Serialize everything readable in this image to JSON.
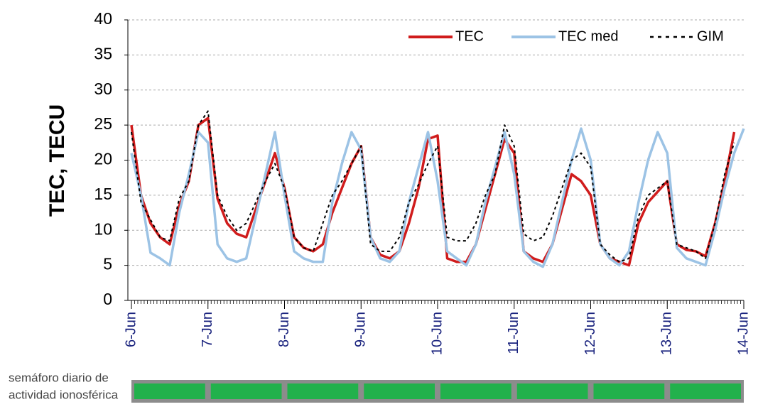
{
  "chart_data": {
    "type": "line",
    "ylabel": "TEC, TECU",
    "x": [
      0,
      0.125,
      0.25,
      0.375,
      0.5,
      0.625,
      0.75,
      0.875,
      1,
      1.125,
      1.25,
      1.375,
      1.5,
      1.625,
      1.75,
      1.875,
      2,
      2.125,
      2.25,
      2.375,
      2.5,
      2.625,
      2.75,
      2.875,
      3,
      3.125,
      3.25,
      3.375,
      3.5,
      3.625,
      3.75,
      3.875,
      4,
      4.125,
      4.25,
      4.375,
      4.5,
      4.625,
      4.75,
      4.875,
      5,
      5.125,
      5.25,
      5.375,
      5.5,
      5.625,
      5.75,
      5.875,
      6,
      6.125,
      6.25,
      6.375,
      6.5,
      6.625,
      6.75,
      6.875,
      7,
      7.125,
      7.25,
      7.375,
      7.5,
      7.625,
      7.75,
      7.875,
      8
    ],
    "series": [
      {
        "name": "TEC",
        "color": "#d01c1c",
        "dash": "solid",
        "values": [
          25,
          15,
          11,
          9,
          8,
          13.5,
          17,
          25,
          26,
          14.5,
          11,
          9.5,
          9,
          13,
          17,
          21,
          16,
          9,
          7.5,
          7,
          8,
          12.5,
          16,
          19.5,
          22,
          9,
          6.5,
          6,
          7,
          11,
          16,
          23,
          23.5,
          6,
          5.5,
          5.5,
          8,
          13,
          18,
          23,
          21,
          7,
          6,
          5.5,
          8,
          13,
          18,
          17,
          15,
          8,
          6,
          5.5,
          5,
          11,
          14,
          15.5,
          17,
          8,
          7.2,
          7,
          6.3,
          11,
          17,
          24,
          null
        ]
      },
      {
        "name": "TEC med",
        "color": "#9cc3e5",
        "dash": "solid",
        "values": [
          21,
          15,
          6.8,
          6,
          5,
          12.5,
          18,
          24,
          22.5,
          8,
          6,
          5.5,
          6,
          12,
          18,
          24,
          15,
          7,
          6,
          5.5,
          5.5,
          14,
          19.5,
          24,
          21.5,
          9,
          6,
          5.5,
          7,
          14,
          19,
          24,
          17,
          7,
          6,
          5,
          8,
          14,
          19,
          24,
          18,
          7,
          5.5,
          4.8,
          8,
          14,
          20,
          24.5,
          20,
          8,
          6,
          5,
          7,
          14,
          20,
          24,
          21,
          7.5,
          6,
          5.5,
          5,
          10,
          16,
          21,
          24.5
        ]
      },
      {
        "name": "GIM",
        "color": "#000000",
        "dash": "dotted",
        "values": [
          24,
          14,
          11.5,
          9,
          8.5,
          14.5,
          17,
          25,
          27,
          15,
          12,
          10,
          11,
          14,
          17,
          19.5,
          16,
          9,
          7.5,
          7,
          11,
          15,
          17,
          19.5,
          22,
          8,
          7,
          7,
          9,
          14,
          16.5,
          19.5,
          22,
          9,
          8.5,
          8.5,
          11,
          15,
          18,
          25,
          22,
          9.5,
          8.5,
          9,
          12,
          16,
          20,
          21,
          19,
          8,
          6.5,
          5.5,
          6,
          12,
          15,
          16,
          17,
          8,
          7.5,
          7,
          6,
          11,
          18,
          22.5,
          null
        ]
      }
    ],
    "xlim": [
      0,
      8
    ],
    "xticks": [
      {
        "value": 0,
        "label": "6-Jun"
      },
      {
        "value": 1,
        "label": "7-Jun"
      },
      {
        "value": 2,
        "label": "8-Jun"
      },
      {
        "value": 3,
        "label": "9-Jun"
      },
      {
        "value": 4,
        "label": "10-Jun"
      },
      {
        "value": 5,
        "label": "11-Jun"
      },
      {
        "value": 6,
        "label": "12-Jun"
      },
      {
        "value": 7,
        "label": "13-Jun"
      },
      {
        "value": 8,
        "label": "14-Jun"
      }
    ],
    "ylim": [
      0,
      40
    ],
    "yticks": [
      0,
      5,
      10,
      15,
      20,
      25,
      30,
      35,
      40
    ],
    "grid": true,
    "legend": "top-right",
    "semaforo": {
      "label": [
        "semáforo diario de",
        "actividad ionosférica"
      ],
      "colors": [
        "#22b14c",
        "#22b14c",
        "#22b14c",
        "#22b14c",
        "#22b14c",
        "#22b14c",
        "#22b14c",
        "#22b14c"
      ]
    }
  }
}
